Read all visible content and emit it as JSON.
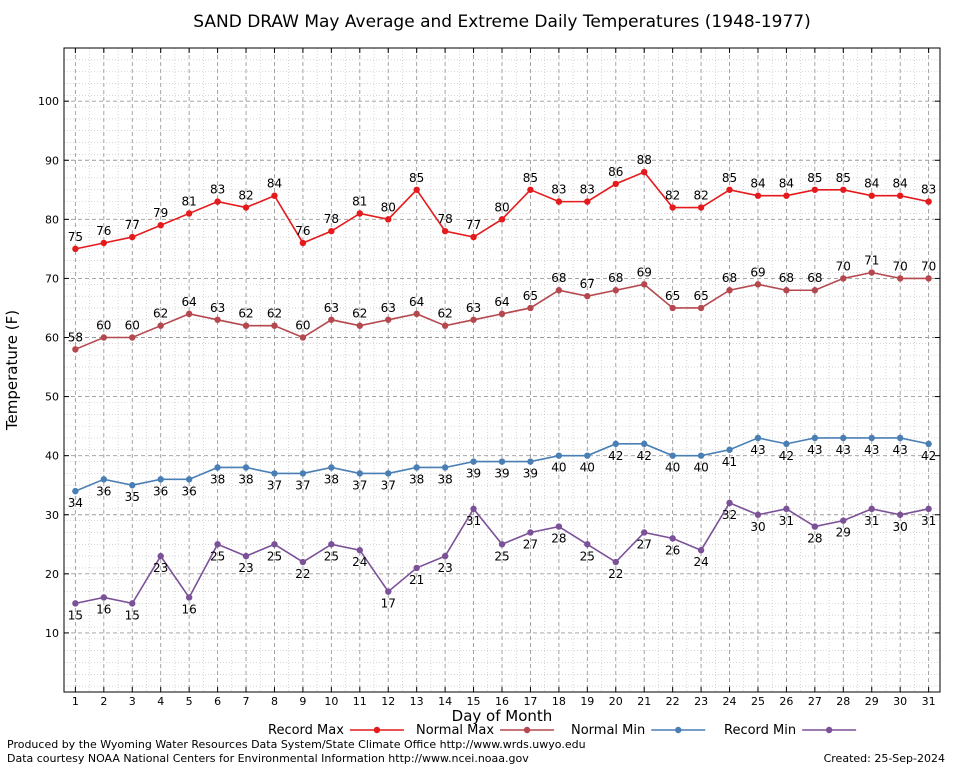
{
  "chart_data": {
    "type": "line",
    "title": "SAND DRAW May Average and Extreme Daily Temperatures (1948-1977)",
    "xlabel": "Day of Month",
    "ylabel": "Temperature (F)",
    "ylim": [
      0,
      109
    ],
    "xlim": [
      0.6,
      31.4
    ],
    "y_ticks": [
      10,
      20,
      30,
      40,
      50,
      60,
      70,
      80,
      90,
      100
    ],
    "grid": true,
    "legend_position": "bottom",
    "x": [
      1,
      2,
      3,
      4,
      5,
      6,
      7,
      8,
      9,
      10,
      11,
      12,
      13,
      14,
      15,
      16,
      17,
      18,
      19,
      20,
      21,
      22,
      23,
      24,
      25,
      26,
      27,
      28,
      29,
      30,
      31
    ],
    "series": [
      {
        "name": "Record Max",
        "color": "#e41a1c",
        "label_pos": "above",
        "values": [
          75,
          76,
          77,
          79,
          81,
          83,
          82,
          84,
          76,
          78,
          81,
          80,
          85,
          78,
          77,
          80,
          85,
          83,
          83,
          86,
          88,
          82,
          82,
          85,
          84,
          84,
          85,
          85,
          84,
          84,
          83
        ]
      },
      {
        "name": "Normal Max",
        "color": "#b5484f",
        "label_pos": "above",
        "values": [
          58,
          60,
          60,
          62,
          64,
          63,
          62,
          62,
          60,
          63,
          62,
          63,
          64,
          62,
          63,
          64,
          65,
          68,
          67,
          68,
          69,
          65,
          65,
          68,
          69,
          68,
          68,
          70,
          71,
          70,
          70
        ]
      },
      {
        "name": "Normal Min",
        "color": "#4a7fb5",
        "label_pos": "below",
        "values": [
          34,
          36,
          35,
          36,
          36,
          38,
          38,
          37,
          37,
          38,
          37,
          37,
          38,
          38,
          39,
          39,
          39,
          40,
          40,
          42,
          42,
          40,
          40,
          41,
          43,
          42,
          43,
          43,
          43,
          43,
          42
        ]
      },
      {
        "name": "Record Min",
        "color": "#7b5197",
        "label_pos": "below",
        "values": [
          15,
          16,
          15,
          23,
          16,
          25,
          23,
          25,
          22,
          25,
          24,
          17,
          21,
          23,
          31,
          25,
          27,
          28,
          25,
          22,
          27,
          26,
          24,
          32,
          30,
          31,
          28,
          29,
          31,
          30,
          31
        ]
      }
    ]
  },
  "footer": {
    "line1": "Produced by the Wyoming Water Resources Data System/State Climate Office http://www.wrds.uwyo.edu",
    "line2": "Data courtesy NOAA National Centers for Environmental Information http://www.ncei.noaa.gov",
    "created": "Created:  25-Sep-2024"
  }
}
